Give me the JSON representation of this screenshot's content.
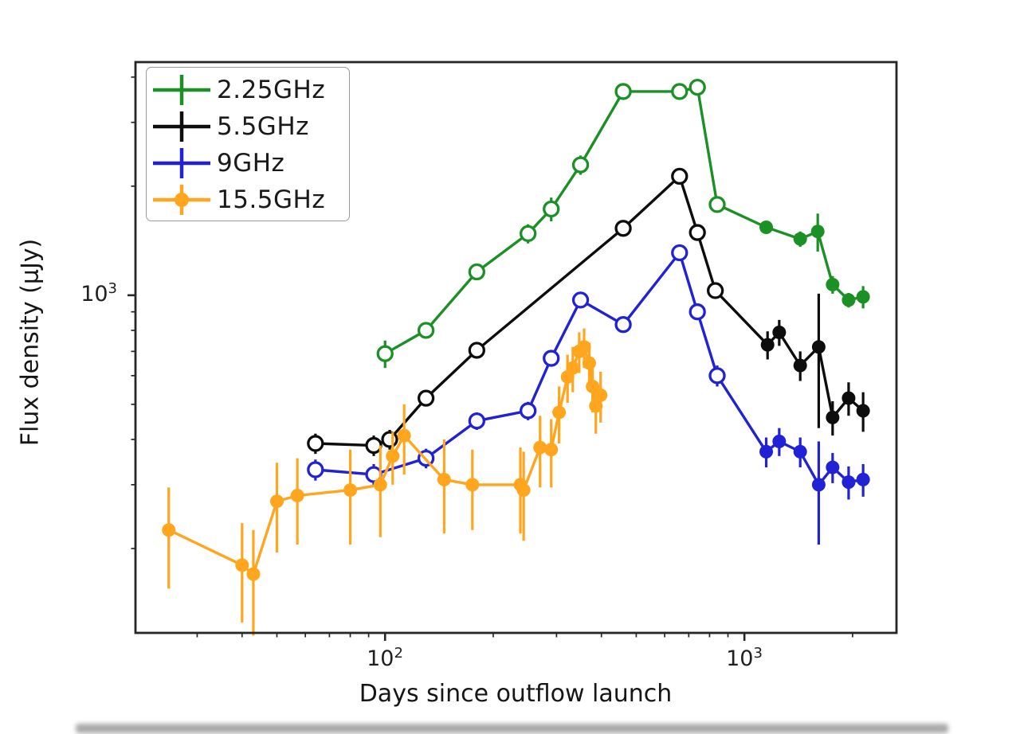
{
  "figure": {
    "background": "#ffffff",
    "spine_color": "#262626",
    "tick_color": "#262626"
  },
  "ticks": {
    "x": [
      {
        "base": "10",
        "exp": "2",
        "value": 100
      },
      {
        "base": "10",
        "exp": "3",
        "value": 1000
      }
    ],
    "y": [
      {
        "base": "10",
        "exp": "3",
        "value": 1000
      }
    ]
  },
  "chart_data": {
    "type": "line",
    "title": "",
    "xlabel": "Days since outflow launch",
    "ylabel": "Flux density (μJy)",
    "x_scale": "log",
    "y_scale": "log",
    "xlim": [
      20.2,
      2650
    ],
    "ylim": [
      117,
      4400
    ],
    "grid": false,
    "legend_position": "upper left",
    "series": [
      {
        "name": "2.25GHz",
        "color": "#1a9025",
        "marker": "circle",
        "open_count": 10,
        "legend_dot": false,
        "points": [
          [
            100,
            690,
            60
          ],
          [
            130,
            800,
            30
          ],
          [
            180,
            1160,
            45
          ],
          [
            250,
            1480,
            90
          ],
          [
            290,
            1730,
            130
          ],
          [
            350,
            2290,
            140
          ],
          [
            460,
            3650,
            90
          ],
          [
            660,
            3650,
            90
          ],
          [
            740,
            3750,
            90
          ],
          [
            840,
            1780,
            70
          ],
          [
            1150,
            1540,
            60
          ],
          [
            1430,
            1430,
            70
          ],
          [
            1600,
            1500,
            180
          ],
          [
            1760,
            1070,
            60
          ],
          [
            1950,
            970,
            45
          ],
          [
            2140,
            990,
            70
          ]
        ]
      },
      {
        "name": "5.5GHz",
        "color": "#0d0d0d",
        "marker": "circle",
        "open_count": 9,
        "legend_dot": false,
        "points": [
          [
            64,
            390,
            25
          ],
          [
            93,
            385,
            25
          ],
          [
            103,
            400,
            25
          ],
          [
            130,
            520,
            25
          ],
          [
            180,
            705,
            25
          ],
          [
            460,
            1530,
            40
          ],
          [
            660,
            2130,
            50
          ],
          [
            740,
            1490,
            40
          ],
          [
            830,
            1030,
            35
          ],
          [
            1160,
            730,
            65
          ],
          [
            1250,
            790,
            65
          ],
          [
            1430,
            640,
            60
          ],
          [
            1610,
            720,
            290
          ],
          [
            1760,
            460,
            50
          ],
          [
            1950,
            520,
            55
          ],
          [
            2140,
            480,
            60
          ]
        ]
      },
      {
        "name": "9GHz",
        "color": "#2121d6",
        "marker": "circle",
        "open_count": 11,
        "legend_dot": false,
        "points": [
          [
            64,
            330,
            22
          ],
          [
            93,
            320,
            22
          ],
          [
            130,
            355,
            22
          ],
          [
            180,
            450,
            25
          ],
          [
            250,
            480,
            28
          ],
          [
            290,
            670,
            30
          ],
          [
            350,
            970,
            35
          ],
          [
            460,
            830,
            35
          ],
          [
            660,
            1310,
            40
          ],
          [
            740,
            900,
            35
          ],
          [
            840,
            600,
            40
          ],
          [
            1150,
            370,
            35
          ],
          [
            1250,
            395,
            35
          ],
          [
            1430,
            370,
            35
          ],
          [
            1610,
            300,
            95
          ],
          [
            1760,
            335,
            32
          ],
          [
            1950,
            305,
            32
          ],
          [
            2140,
            310,
            32
          ]
        ]
      },
      {
        "name": "15.5GHz",
        "color": "#ffa51e",
        "marker": "circle",
        "open_count": 0,
        "legend_dot": true,
        "points": [
          [
            25,
            225,
            70
          ],
          [
            40,
            180,
            55
          ],
          [
            43,
            170,
            55
          ],
          [
            50,
            270,
            75
          ],
          [
            57,
            280,
            75
          ],
          [
            80,
            290,
            85
          ],
          [
            97,
            300,
            85
          ],
          [
            105,
            360,
            60
          ],
          [
            113,
            410,
            90
          ],
          [
            146,
            310,
            90
          ],
          [
            175,
            300,
            75
          ],
          [
            238,
            300,
            80
          ],
          [
            243,
            290,
            80
          ],
          [
            270,
            380,
            85
          ],
          [
            290,
            375,
            80
          ],
          [
            305,
            475,
            85
          ],
          [
            322,
            595,
            90
          ],
          [
            333,
            630,
            90
          ],
          [
            347,
            700,
            90
          ],
          [
            358,
            720,
            90
          ],
          [
            370,
            650,
            90
          ],
          [
            378,
            560,
            85
          ],
          [
            386,
            495,
            80
          ],
          [
            398,
            530,
            85
          ]
        ]
      }
    ]
  }
}
